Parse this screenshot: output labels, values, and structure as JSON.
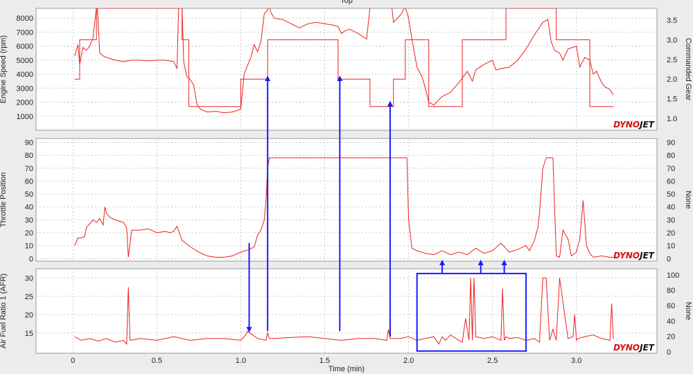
{
  "chart_data": {
    "type": "line",
    "top_label": "Top",
    "x_axis": {
      "label": "Time (min)",
      "range": [
        -0.22,
        3.48
      ],
      "ticks": [
        "0",
        "0.5",
        "1.0",
        "1.5",
        "2.0",
        "2.5",
        "3.0"
      ],
      "tick_values": [
        0,
        0.5,
        1.0,
        1.5,
        2.0,
        2.5,
        3.0
      ]
    },
    "logo_text_a": "DYNO",
    "logo_text_b": "JET",
    "colors": {
      "trace": "#e8201e",
      "annotation": "#1a1aff",
      "panel_bg": "#ffffff",
      "frame_bg": "#ececec",
      "logo_red": "#d01010",
      "logo_black": "#111111"
    },
    "grid": true,
    "panels": [
      {
        "left_label": "Engine Speed (rpm)",
        "right_label": "Commanded Gear",
        "left_ticks": [
          "1000",
          "2000",
          "3000",
          "4000",
          "5000",
          "6000",
          "7000",
          "8000"
        ],
        "left_tick_values": [
          1000,
          2000,
          3000,
          4000,
          5000,
          6000,
          7000,
          8000
        ],
        "left_range": [
          0,
          8700
        ],
        "right_ticks": [
          "1.0",
          "1.5",
          "2.0",
          "2.5",
          "3.0",
          "3.5"
        ],
        "right_tick_values": [
          1.0,
          1.5,
          2.0,
          2.5,
          3.0,
          3.5
        ],
        "right_range": [
          0.7,
          3.8
        ],
        "series": [
          {
            "axis": "left",
            "x": [
              0.01,
              0.03,
              0.04,
              0.06,
              0.08,
              0.1,
              0.12,
              0.14,
              0.145,
              0.16,
              0.18,
              0.2,
              0.25,
              0.3,
              0.35,
              0.4,
              0.45,
              0.5,
              0.55,
              0.6,
              0.62,
              0.63,
              0.64,
              0.65,
              0.66,
              0.67,
              0.68,
              0.7,
              0.72,
              0.74,
              0.76,
              0.8,
              0.85,
              0.9,
              0.95,
              1.0,
              1.02,
              1.04,
              1.06,
              1.08,
              1.1,
              1.12,
              1.14,
              1.16,
              1.17,
              1.18,
              1.2,
              1.25,
              1.3,
              1.35,
              1.4,
              1.45,
              1.5,
              1.55,
              1.58,
              1.6,
              1.62,
              1.65,
              1.7,
              1.75,
              1.77,
              1.78,
              1.8,
              1.85,
              1.9,
              1.91,
              1.95,
              1.98,
              2.0,
              2.02,
              2.05,
              2.08,
              2.1,
              2.12,
              2.15,
              2.2,
              2.25,
              2.3,
              2.35,
              2.38,
              2.4,
              2.45,
              2.5,
              2.52,
              2.55,
              2.6,
              2.65,
              2.7,
              2.75,
              2.8,
              2.83,
              2.85,
              2.87,
              2.9,
              2.92,
              2.95,
              3.0,
              3.02,
              3.05,
              3.08,
              3.1,
              3.12,
              3.15,
              3.17,
              3.2,
              3.22
            ],
            "y": [
              5300,
              6100,
              4700,
              5900,
              5700,
              6000,
              6600,
              8800,
              8800,
              5500,
              5300,
              5200,
              5000,
              4900,
              5000,
              5000,
              4950,
              5000,
              5000,
              4900,
              4400,
              8800,
              8800,
              8800,
              4900,
              4300,
              3800,
              3600,
              3200,
              1800,
              1500,
              1300,
              1350,
              1250,
              1300,
              1500,
              4000,
              4600,
              5200,
              6100,
              5600,
              6300,
              8300,
              8600,
              8800,
              8400,
              8000,
              7900,
              7600,
              7300,
              7600,
              7700,
              7600,
              7500,
              7400,
              6900,
              7100,
              7200,
              6900,
              6500,
              8800,
              8800,
              8800,
              8800,
              8800,
              7700,
              8200,
              8800,
              8000,
              6500,
              4500,
              3800,
              3000,
              2000,
              1800,
              2400,
              2700,
              3400,
              4200,
              3500,
              4300,
              4700,
              5000,
              4300,
              4400,
              4500,
              5000,
              5800,
              6800,
              7700,
              7900,
              6300,
              5700,
              5500,
              5000,
              5800,
              6000,
              4500,
              5200,
              5000,
              4000,
              4200,
              3400,
              3100,
              2900,
              2500
            ]
          },
          {
            "axis": "right",
            "x": [
              0.01,
              0.01,
              0.04,
              0.04,
              0.14,
              0.14,
              0.65,
              0.65,
              0.69,
              0.69,
              1.0,
              1.0,
              1.16,
              1.16,
              1.58,
              1.58,
              1.77,
              1.77,
              1.91,
              1.91,
              1.98,
              1.98,
              2.12,
              2.12,
              2.32,
              2.32,
              2.58,
              2.58,
              2.88,
              2.88,
              3.08,
              3.08,
              3.22
            ],
            "y": [
              2.0,
              2.0,
              2.0,
              3.0,
              3.0,
              3.8,
              3.8,
              3.0,
              3.0,
              1.3,
              1.3,
              2.0,
              2.0,
              3.0,
              3.0,
              2.0,
              2.0,
              1.3,
              1.3,
              2.0,
              2.0,
              3.0,
              3.0,
              1.3,
              1.3,
              3.0,
              3.0,
              3.8,
              3.8,
              3.0,
              3.0,
              1.3,
              1.3
            ]
          }
        ]
      },
      {
        "left_label": "Throttle Position",
        "right_label": "None",
        "left_ticks": [
          "0",
          "10",
          "20",
          "30",
          "40",
          "50",
          "60",
          "70",
          "80",
          "90"
        ],
        "left_tick_values": [
          0,
          10,
          20,
          30,
          40,
          50,
          60,
          70,
          80,
          90
        ],
        "left_range": [
          -2,
          93
        ],
        "right_ticks": [
          "0",
          "10",
          "20",
          "30",
          "40",
          "50",
          "60",
          "70",
          "80",
          "90"
        ],
        "right_tick_values": [
          0,
          10,
          20,
          30,
          40,
          50,
          60,
          70,
          80,
          90
        ],
        "right_range": [
          -2,
          93
        ],
        "series": [
          {
            "axis": "left",
            "x": [
              0.01,
              0.03,
              0.05,
              0.07,
              0.08,
              0.1,
              0.12,
              0.14,
              0.16,
              0.18,
              0.19,
              0.2,
              0.22,
              0.25,
              0.3,
              0.32,
              0.33,
              0.35,
              0.4,
              0.45,
              0.5,
              0.55,
              0.58,
              0.6,
              0.62,
              0.65,
              0.7,
              0.75,
              0.8,
              0.85,
              0.9,
              0.95,
              1.0,
              1.05,
              1.08,
              1.1,
              1.12,
              1.14,
              1.15,
              1.16,
              1.17,
              1.2,
              1.4,
              1.6,
              1.8,
              1.99,
              2.0,
              2.02,
              2.05,
              2.1,
              2.15,
              2.2,
              2.25,
              2.3,
              2.35,
              2.4,
              2.45,
              2.5,
              2.55,
              2.6,
              2.65,
              2.7,
              2.72,
              2.75,
              2.77,
              2.78,
              2.8,
              2.82,
              2.84,
              2.86,
              2.88,
              2.9,
              2.92,
              2.95,
              2.97,
              3.0,
              3.02,
              3.04,
              3.06,
              3.08,
              3.1,
              3.15,
              3.2,
              3.22
            ],
            "y": [
              10,
              16,
              16,
              17,
              24,
              27,
              30,
              28,
              31,
              26,
              40,
              35,
              32,
              30,
              28,
              24,
              1,
              22,
              22,
              23,
              20,
              21,
              20,
              21,
              25,
              14,
              9,
              5,
              2,
              1,
              1,
              2,
              5,
              7,
              9,
              18,
              22,
              30,
              45,
              70,
              78,
              78,
              78,
              78,
              78,
              78,
              30,
              8,
              6,
              4,
              3,
              6,
              3,
              5,
              3,
              8,
              4,
              6,
              12,
              5,
              7,
              10,
              6,
              14,
              24,
              35,
              70,
              78,
              78,
              78,
              2,
              1,
              22,
              15,
              2,
              5,
              15,
              45,
              10,
              4,
              1,
              2,
              1,
              1
            ]
          }
        ]
      },
      {
        "left_label": "Air Fuel Ratio 1 (AFR)",
        "right_label": "None",
        "left_ticks": [
          "15",
          "20",
          "25",
          "30"
        ],
        "left_tick_values": [
          15,
          20,
          25,
          30
        ],
        "left_range": [
          9.5,
          32.5
        ],
        "right_ticks": [
          "0",
          "20",
          "40",
          "60",
          "80",
          "100"
        ],
        "right_tick_values": [
          0,
          20,
          40,
          60,
          80,
          100
        ],
        "right_range": [
          -2,
          108
        ],
        "series": [
          {
            "axis": "left",
            "x": [
              0.01,
              0.05,
              0.1,
              0.15,
              0.2,
              0.25,
              0.3,
              0.32,
              0.33,
              0.34,
              0.4,
              0.5,
              0.6,
              0.7,
              0.8,
              0.9,
              1.0,
              1.03,
              1.04,
              1.1,
              1.15,
              1.16,
              1.17,
              1.2,
              1.3,
              1.4,
              1.5,
              1.6,
              1.7,
              1.8,
              1.87,
              1.88,
              1.89,
              1.95,
              2.0,
              2.05,
              2.1,
              2.15,
              2.18,
              2.2,
              2.22,
              2.25,
              2.3,
              2.32,
              2.34,
              2.36,
              2.37,
              2.38,
              2.39,
              2.4,
              2.45,
              2.5,
              2.55,
              2.56,
              2.57,
              2.58,
              2.6,
              2.65,
              2.7,
              2.75,
              2.78,
              2.8,
              2.82,
              2.84,
              2.86,
              2.88,
              2.9,
              2.95,
              2.98,
              2.99,
              3.0,
              3.01,
              3.05,
              3.1,
              3.15,
              3.2,
              3.21,
              3.22
            ],
            "y": [
              14,
              13,
              13.5,
              12.8,
              13.5,
              12.5,
              13,
              12,
              27.5,
              13,
              13.5,
              13,
              14,
              13,
              13.5,
              13.5,
              13,
              14.5,
              15.5,
              13.5,
              13,
              15,
              13.5,
              13.5,
              13.8,
              14,
              13.5,
              13,
              13.5,
              13.5,
              13,
              16,
              13.5,
              13.5,
              14,
              13,
              13.5,
              14,
              12,
              14,
              13,
              14.5,
              13,
              12.5,
              19,
              13,
              30,
              13,
              30,
              14,
              13.5,
              14,
              13,
              27,
              13,
              14,
              13.5,
              13.8,
              13,
              13.5,
              12.5,
              30,
              30,
              13,
              16,
              13,
              30,
              13.5,
              14,
              20,
              13,
              13.5,
              14,
              14.5,
              13.5,
              13,
              23,
              13.5
            ]
          }
        ]
      }
    ],
    "annotations": [
      {
        "type": "arrow",
        "x": 1.05,
        "panel_from": 1,
        "value_from": 12,
        "panel_to": 2,
        "value_to": 15.5
      },
      {
        "type": "arrow",
        "x": 1.16,
        "panel_from": 2,
        "value_from": 15.5,
        "panel_to": 0,
        "value_to": 3800
      },
      {
        "type": "arrow",
        "x": 1.59,
        "panel_from": 2,
        "value_from": 15.5,
        "panel_to": 0,
        "value_to": 3800
      },
      {
        "type": "arrow",
        "x": 1.89,
        "panel_from": 2,
        "value_from": 14,
        "panel_to": 0,
        "value_to": 2000
      },
      {
        "type": "arrow",
        "x": 2.2,
        "panel_from": 2,
        "value_from": 31.2,
        "panel_to": 1,
        "value_to": -2
      },
      {
        "type": "arrow",
        "x": 2.43,
        "panel_from": 2,
        "value_from": 31.2,
        "panel_to": 1,
        "value_to": -2
      },
      {
        "type": "arrow",
        "x": 2.57,
        "panel_from": 2,
        "value_from": 31.2,
        "panel_to": 1,
        "value_to": -2
      },
      {
        "type": "box",
        "x0": 2.05,
        "x1": 2.7,
        "panel": 2,
        "y0": 10.1,
        "y1": 31.2
      }
    ]
  }
}
